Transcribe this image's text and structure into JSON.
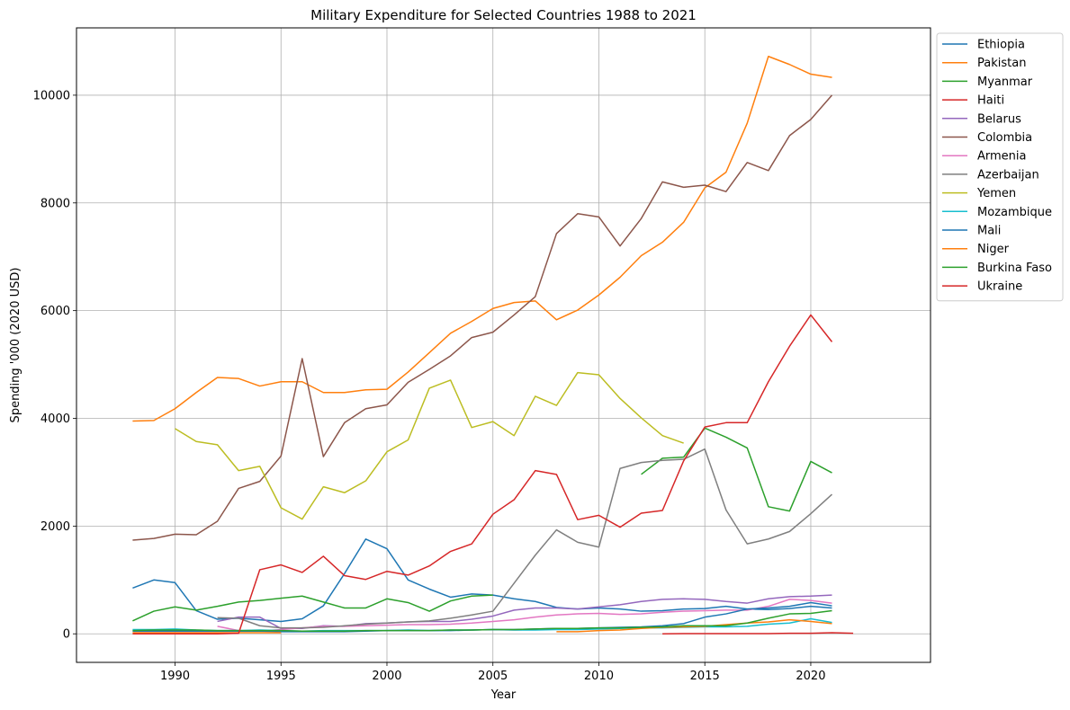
{
  "chart_data": {
    "type": "line",
    "title": "Military Expenditure for Selected Countries 1988 to 2021",
    "xlabel": "Year",
    "ylabel": "Spending '000 (2020 USD)",
    "xlim": [
      1985.35,
      2025.65
    ],
    "ylim": [
      -530,
      11250
    ],
    "xticks": [
      1990,
      1995,
      2000,
      2005,
      2010,
      2015,
      2020
    ],
    "yticks": [
      0,
      2000,
      4000,
      6000,
      8000,
      10000
    ],
    "grid": true,
    "legend_position": "outside-right",
    "series": [
      {
        "name": "Ethiopia",
        "color": "#1f77b4",
        "x0": 1988,
        "values": [
          850,
          1000,
          950,
          430,
          270,
          290,
          260,
          230,
          280,
          520,
          1120,
          1760,
          1580,
          1000,
          830,
          680,
          740,
          720,
          650,
          600,
          490,
          460,
          480,
          460,
          420,
          430,
          460,
          470,
          510,
          460,
          450,
          470,
          510,
          480
        ]
      },
      {
        "name": "Pakistan",
        "color": "#ff7f0e",
        "x0": 1988,
        "values": [
          3950,
          3960,
          4180,
          4480,
          4760,
          4740,
          4600,
          4680,
          4680,
          4480,
          4480,
          4530,
          4540,
          4860,
          5220,
          5580,
          5800,
          6040,
          6150,
          6180,
          5830,
          6010,
          6290,
          6620,
          7020,
          7270,
          7640,
          8280,
          8570,
          9480,
          10720,
          10570,
          10390,
          10330
        ]
      },
      {
        "name": "Myanmar",
        "color": "#2ca02c",
        "x0": 1988,
        "values": [
          240,
          420,
          500,
          440,
          510,
          590,
          620,
          660,
          700,
          590,
          480,
          480,
          650,
          580,
          420,
          610,
          700,
          720,
          null,
          null,
          null,
          null,
          null,
          null,
          2960,
          3260,
          3280,
          3820,
          3650,
          3450,
          2360,
          2280,
          3200,
          2990
        ]
      },
      {
        "name": "Haiti",
        "color": "#d62728",
        "x0": 2013,
        "values": [
          0,
          5,
          5,
          5,
          5,
          5,
          10,
          10,
          20,
          10
        ]
      },
      {
        "name": "Belarus",
        "color": "#9467bd",
        "x0": 1992,
        "values": [
          230,
          310,
          310,
          100,
          100,
          150,
          140,
          190,
          200,
          220,
          230,
          230,
          270,
          330,
          440,
          480,
          480,
          460,
          500,
          540,
          600,
          640,
          650,
          640,
          600,
          570,
          650,
          690,
          700,
          720
        ]
      },
      {
        "name": "Colombia",
        "color": "#8c564b",
        "x0": 1988,
        "values": [
          1740,
          1770,
          1850,
          1840,
          2090,
          2700,
          2830,
          3300,
          5110,
          3290,
          3920,
          4180,
          4250,
          4670,
          4910,
          5160,
          5500,
          5600,
          5920,
          6260,
          7430,
          7800,
          7740,
          7200,
          7710,
          8390,
          8290,
          8330,
          8210,
          8750,
          8600,
          9250,
          9550,
          10000
        ]
      },
      {
        "name": "Armenia",
        "color": "#e377c2",
        "x0": 1992,
        "values": [
          140,
          60,
          50,
          80,
          110,
          140,
          140,
          150,
          160,
          170,
          170,
          180,
          200,
          230,
          260,
          310,
          350,
          370,
          380,
          360,
          370,
          400,
          420,
          430,
          440,
          440,
          510,
          640,
          620,
          570
        ]
      },
      {
        "name": "Azerbaijan",
        "color": "#7f7f7f",
        "x0": 1992,
        "values": [
          300,
          290,
          150,
          110,
          110,
          120,
          150,
          180,
          200,
          220,
          240,
          290,
          350,
          420,
          940,
          1460,
          1930,
          1700,
          1610,
          3070,
          3180,
          3220,
          3240,
          3430,
          2300,
          1670,
          1760,
          1900,
          2230,
          2590
        ]
      },
      {
        "name": "Yemen",
        "color": "#bcbd22",
        "x0": 1990,
        "values": [
          3810,
          3570,
          3510,
          3030,
          3110,
          2340,
          2130,
          2730,
          2620,
          2840,
          3380,
          3600,
          4560,
          4710,
          3830,
          3940,
          3680,
          4410,
          4240,
          4850,
          4810,
          4370,
          4010,
          3680,
          3540
        ]
      },
      {
        "name": "Mozambique",
        "color": "#17becf",
        "x0": 1988,
        "values": [
          80,
          80,
          90,
          70,
          60,
          60,
          70,
          60,
          50,
          60,
          60,
          60,
          60,
          70,
          60,
          70,
          70,
          80,
          70,
          70,
          80,
          80,
          90,
          100,
          110,
          110,
          120,
          130,
          130,
          140,
          180,
          200,
          280,
          210
        ]
      },
      {
        "name": "Mali",
        "color": "#1f77b4",
        "x0": 1988,
        "values": [
          50,
          50,
          50,
          50,
          50,
          50,
          50,
          40,
          40,
          40,
          40,
          50,
          60,
          60,
          60,
          60,
          70,
          80,
          80,
          90,
          100,
          100,
          110,
          120,
          130,
          150,
          190,
          310,
          370,
          460,
          480,
          510,
          580,
          520
        ]
      },
      {
        "name": "Niger",
        "color": "#ff7f0e",
        "x0": 1988,
        "values": [
          20,
          20,
          20,
          20,
          20,
          20,
          20,
          20,
          null,
          null,
          null,
          null,
          null,
          null,
          null,
          null,
          null,
          null,
          null,
          null,
          40,
          40,
          60,
          70,
          100,
          120,
          130,
          140,
          170,
          200,
          220,
          260,
          230,
          190
        ]
      },
      {
        "name": "Burkina Faso",
        "color": "#2ca02c",
        "x0": 1988,
        "values": [
          60,
          70,
          70,
          70,
          60,
          60,
          60,
          60,
          50,
          50,
          50,
          60,
          60,
          60,
          60,
          70,
          70,
          80,
          80,
          90,
          100,
          100,
          110,
          110,
          120,
          130,
          150,
          150,
          150,
          200,
          290,
          370,
          380,
          430
        ]
      },
      {
        "name": "Ukraine",
        "color": "#d62728",
        "x0": 1988,
        "values": [
          0,
          0,
          0,
          0,
          0,
          10,
          1190,
          1280,
          1140,
          1440,
          1080,
          1010,
          1160,
          1090,
          1260,
          1530,
          1670,
          2220,
          2490,
          3030,
          2960,
          2120,
          2200,
          1980,
          2240,
          2290,
          3210,
          3840,
          3920,
          3920,
          4680,
          5340,
          5920,
          5420
        ]
      }
    ]
  }
}
